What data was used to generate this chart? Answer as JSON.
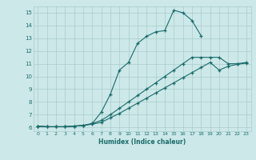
{
  "xlabel": "Humidex (Indice chaleur)",
  "bg_color": "#cce8e8",
  "line_color": "#1a6b6b",
  "grid_color": "#aacccc",
  "xlim": [
    -0.5,
    23.5
  ],
  "ylim": [
    5.7,
    15.5
  ],
  "xtick_vals": [
    0,
    1,
    2,
    3,
    4,
    5,
    6,
    7,
    8,
    9,
    10,
    11,
    12,
    13,
    14,
    15,
    16,
    17,
    18,
    19,
    20,
    21,
    22,
    23
  ],
  "ytick_vals": [
    6,
    7,
    8,
    9,
    10,
    11,
    12,
    13,
    14,
    15
  ],
  "line1_x": [
    0,
    1,
    2,
    3,
    4,
    5,
    6,
    7,
    8,
    9,
    10,
    11,
    12,
    13,
    14,
    15,
    16,
    17,
    18
  ],
  "line1_y": [
    6.1,
    6.05,
    6.05,
    6.05,
    6.1,
    6.15,
    6.3,
    7.2,
    8.6,
    10.5,
    11.1,
    12.6,
    13.15,
    13.5,
    13.6,
    15.2,
    15.0,
    14.4,
    13.2
  ],
  "line2_x": [
    0,
    1,
    2,
    3,
    4,
    5,
    6,
    7,
    8,
    9,
    10,
    11,
    12,
    13,
    14,
    15,
    16,
    17,
    18,
    19,
    20,
    21,
    22,
    23
  ],
  "line2_y": [
    6.1,
    6.05,
    6.05,
    6.05,
    6.1,
    6.15,
    6.3,
    6.55,
    7.0,
    7.5,
    8.0,
    8.5,
    9.0,
    9.5,
    10.0,
    10.5,
    11.0,
    11.5,
    11.5,
    11.5,
    11.5,
    11.0,
    11.0,
    11.1
  ],
  "line3_x": [
    0,
    1,
    2,
    3,
    4,
    5,
    6,
    7,
    8,
    9,
    10,
    11,
    12,
    13,
    14,
    15,
    16,
    17,
    18,
    19,
    20,
    21,
    22,
    23
  ],
  "line3_y": [
    6.1,
    6.05,
    6.05,
    6.05,
    6.1,
    6.15,
    6.25,
    6.4,
    6.75,
    7.1,
    7.5,
    7.9,
    8.3,
    8.7,
    9.1,
    9.5,
    9.9,
    10.3,
    10.7,
    11.1,
    10.5,
    10.8,
    10.95,
    11.05
  ]
}
